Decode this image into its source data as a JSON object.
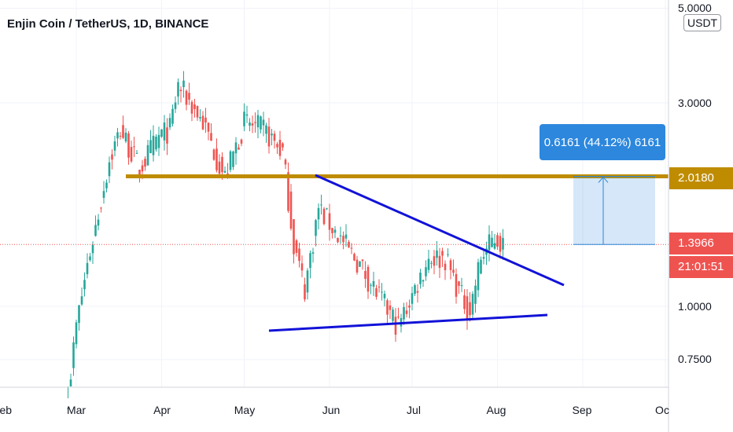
{
  "header": {
    "title": "Enjin Coin / TetherUS, 1D, BINANCE",
    "currency_badge": "USDT"
  },
  "chart_data": {
    "type": "candlestick",
    "title": "Enjin Coin / TetherUS, 1D, BINANCE",
    "y_scale": "log",
    "y_tick_labels": [
      "5.0000",
      "3.0000",
      "1.0000",
      "0.7500"
    ],
    "x_tick_labels": [
      "Feb",
      "Mar",
      "Apr",
      "May",
      "Jun",
      "Jul",
      "Aug",
      "Sep",
      "Oc"
    ],
    "last_price": "1.3966",
    "countdown": "21:01:51",
    "resistance_level": "2.0180",
    "measure_label": "0.6161 (44.12%) 6161",
    "colors": {
      "up": "#26a69a",
      "down": "#ef5350",
      "resistance": "#bf8c00",
      "trendline": "#1212d8",
      "measure": "#2c87dd"
    },
    "approx_path": [
      {
        "date": "Feb 26",
        "close": 0.62
      },
      {
        "date": "Mar 1",
        "close": 0.9
      },
      {
        "date": "Mar 5",
        "close": 1.25
      },
      {
        "date": "Mar 9",
        "close": 1.65
      },
      {
        "date": "Mar 13",
        "close": 2.2
      },
      {
        "date": "Mar 17",
        "close": 2.6
      },
      {
        "date": "Mar 24",
        "close": 2.1
      },
      {
        "date": "Mar 31",
        "close": 2.5
      },
      {
        "date": "Apr 4",
        "close": 2.6
      },
      {
        "date": "Apr 7",
        "close": 3.3
      },
      {
        "date": "Apr 10",
        "close": 3.1
      },
      {
        "date": "Apr 16",
        "close": 2.7
      },
      {
        "date": "Apr 24",
        "close": 2.0
      },
      {
        "date": "May 1",
        "close": 2.7
      },
      {
        "date": "May 8",
        "close": 2.6
      },
      {
        "date": "May 15",
        "close": 2.3
      },
      {
        "date": "May 19",
        "close": 1.4
      },
      {
        "date": "May 23",
        "close": 1.1
      },
      {
        "date": "May 28",
        "close": 1.7
      },
      {
        "date": "Jun 3",
        "close": 1.5
      },
      {
        "date": "Jun 12",
        "close": 1.25
      },
      {
        "date": "Jun 22",
        "close": 0.98
      },
      {
        "date": "Jun 26",
        "close": 0.9
      },
      {
        "date": "Jul 2",
        "close": 1.1
      },
      {
        "date": "Jul 7",
        "close": 1.3
      },
      {
        "date": "Jul 13",
        "close": 1.3
      },
      {
        "date": "Jul 19",
        "close": 1.05
      },
      {
        "date": "Jul 22",
        "close": 0.98
      },
      {
        "date": "Jul 26",
        "close": 1.3
      },
      {
        "date": "Jul 31",
        "close": 1.45
      },
      {
        "date": "Aug 3",
        "close": 1.3966
      }
    ]
  }
}
